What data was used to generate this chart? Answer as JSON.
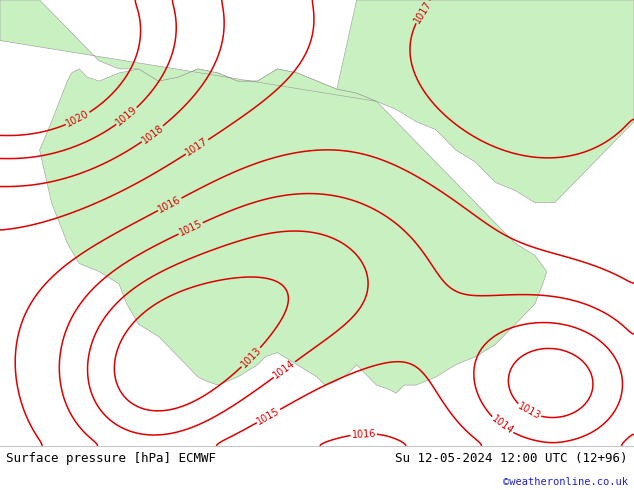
{
  "title_left": "Surface pressure [hPa] ECMWF",
  "title_right": "Su 12-05-2024 12:00 UTC (12+96)",
  "credit": "©weatheronline.co.uk",
  "land_color": "#c8f0c0",
  "sea_color": "#dcdcdc",
  "contour_color": "#dd0000",
  "contour_linewidth": 1.1,
  "label_fontsize": 7,
  "footer_fontsize": 9,
  "credit_color": "#2222cc",
  "figsize": [
    6.34,
    4.9
  ],
  "dpi": 100,
  "xlim": [
    -10.5,
    5.5
  ],
  "ylim": [
    34.5,
    45.5
  ],
  "levels": [
    1013,
    1014,
    1015,
    1016,
    1017,
    1018,
    1019,
    1020
  ]
}
